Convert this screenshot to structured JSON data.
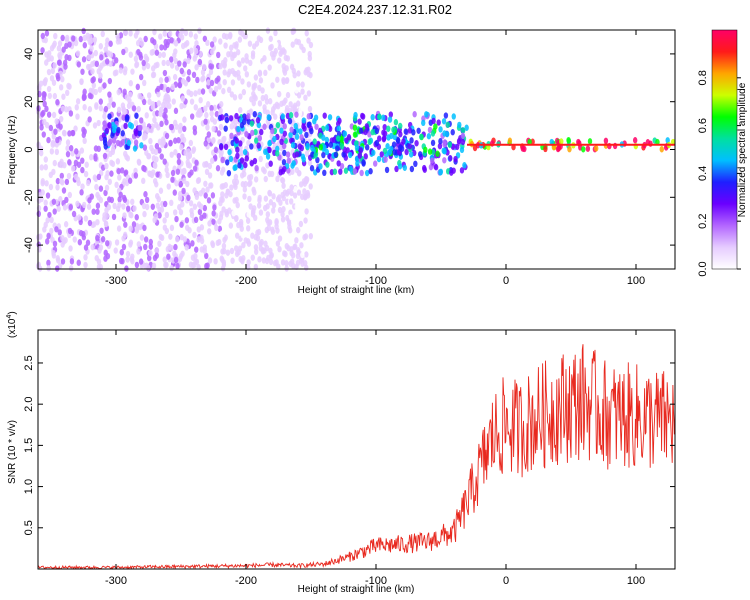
{
  "title": "C2E4.2024.237.12.31.R02",
  "chart_data": [
    {
      "type": "heatmap",
      "xlabel": "Height of straight line (km)",
      "ylabel": "Frequency (Hz)",
      "xlim": [
        -360,
        130
      ],
      "ylim": [
        -50,
        50
      ],
      "xticks": [
        -300,
        -200,
        -100,
        0,
        100
      ],
      "yticks": [
        -40,
        -20,
        0,
        20,
        40
      ],
      "colorbar": {
        "label": "Normalized spectral amplitude",
        "range": [
          0,
          1
        ],
        "ticks": [
          0.0,
          0.2,
          0.4,
          0.6,
          0.8
        ],
        "colormap": [
          "#ffffff",
          "#e6ccff",
          "#b366ff",
          "#6a00ff",
          "#1f1fff",
          "#00bfff",
          "#00e0a0",
          "#00ff00",
          "#ccff00",
          "#ffa500",
          "#ff1a1a",
          "#ff0066"
        ]
      },
      "regions": [
        {
          "x": [
            -360,
            -220
          ],
          "freq_band": [
            -50,
            50
          ],
          "amplitude": 0.12,
          "note": "broadband noise"
        },
        {
          "x": [
            -220,
            -150
          ],
          "freq_band": [
            -50,
            50
          ],
          "amplitude": 0.08
        },
        {
          "x": [
            -310,
            -280
          ],
          "freq_band": [
            0,
            15
          ],
          "amplitude": 0.3
        },
        {
          "x": [
            -220,
            -30
          ],
          "freq_band": [
            -10,
            15
          ],
          "amplitude": 0.35
        },
        {
          "x": [
            -150,
            -50
          ],
          "freq_band": [
            -3,
            10
          ],
          "amplitude": 0.45
        },
        {
          "x": [
            -30,
            130
          ],
          "freq_center": 2,
          "freq_band": [
            0,
            4
          ],
          "amplitude": 0.85,
          "note": "narrow carrier line"
        }
      ]
    },
    {
      "type": "line",
      "xlabel": "Height of straight line (km)",
      "ylabel": "SNR (10 * v/v)",
      "y_multiplier_label": "(x10",
      "y_multiplier_exp": "4",
      "xlim": [
        -360,
        130
      ],
      "ylim": [
        0,
        2.9
      ],
      "xticks": [
        -300,
        -200,
        -100,
        0,
        100
      ],
      "yticks": [
        0.5,
        1.0,
        1.5,
        2.0,
        2.5
      ],
      "series": [
        {
          "color": "#e8291f",
          "x": [
            -360,
            -300,
            -250,
            -200,
            -180,
            -160,
            -140,
            -120,
            -100,
            -80,
            -60,
            -40,
            -30,
            -20,
            -10,
            0,
            10,
            20,
            40,
            60,
            80,
            100,
            120,
            130
          ],
          "y": [
            0.02,
            0.02,
            0.03,
            0.04,
            0.05,
            0.04,
            0.06,
            0.15,
            0.28,
            0.3,
            0.33,
            0.45,
            0.8,
            1.2,
            1.6,
            1.75,
            1.7,
            1.8,
            1.95,
            2.05,
            1.85,
            1.85,
            1.8,
            1.8
          ]
        }
      ]
    }
  ]
}
